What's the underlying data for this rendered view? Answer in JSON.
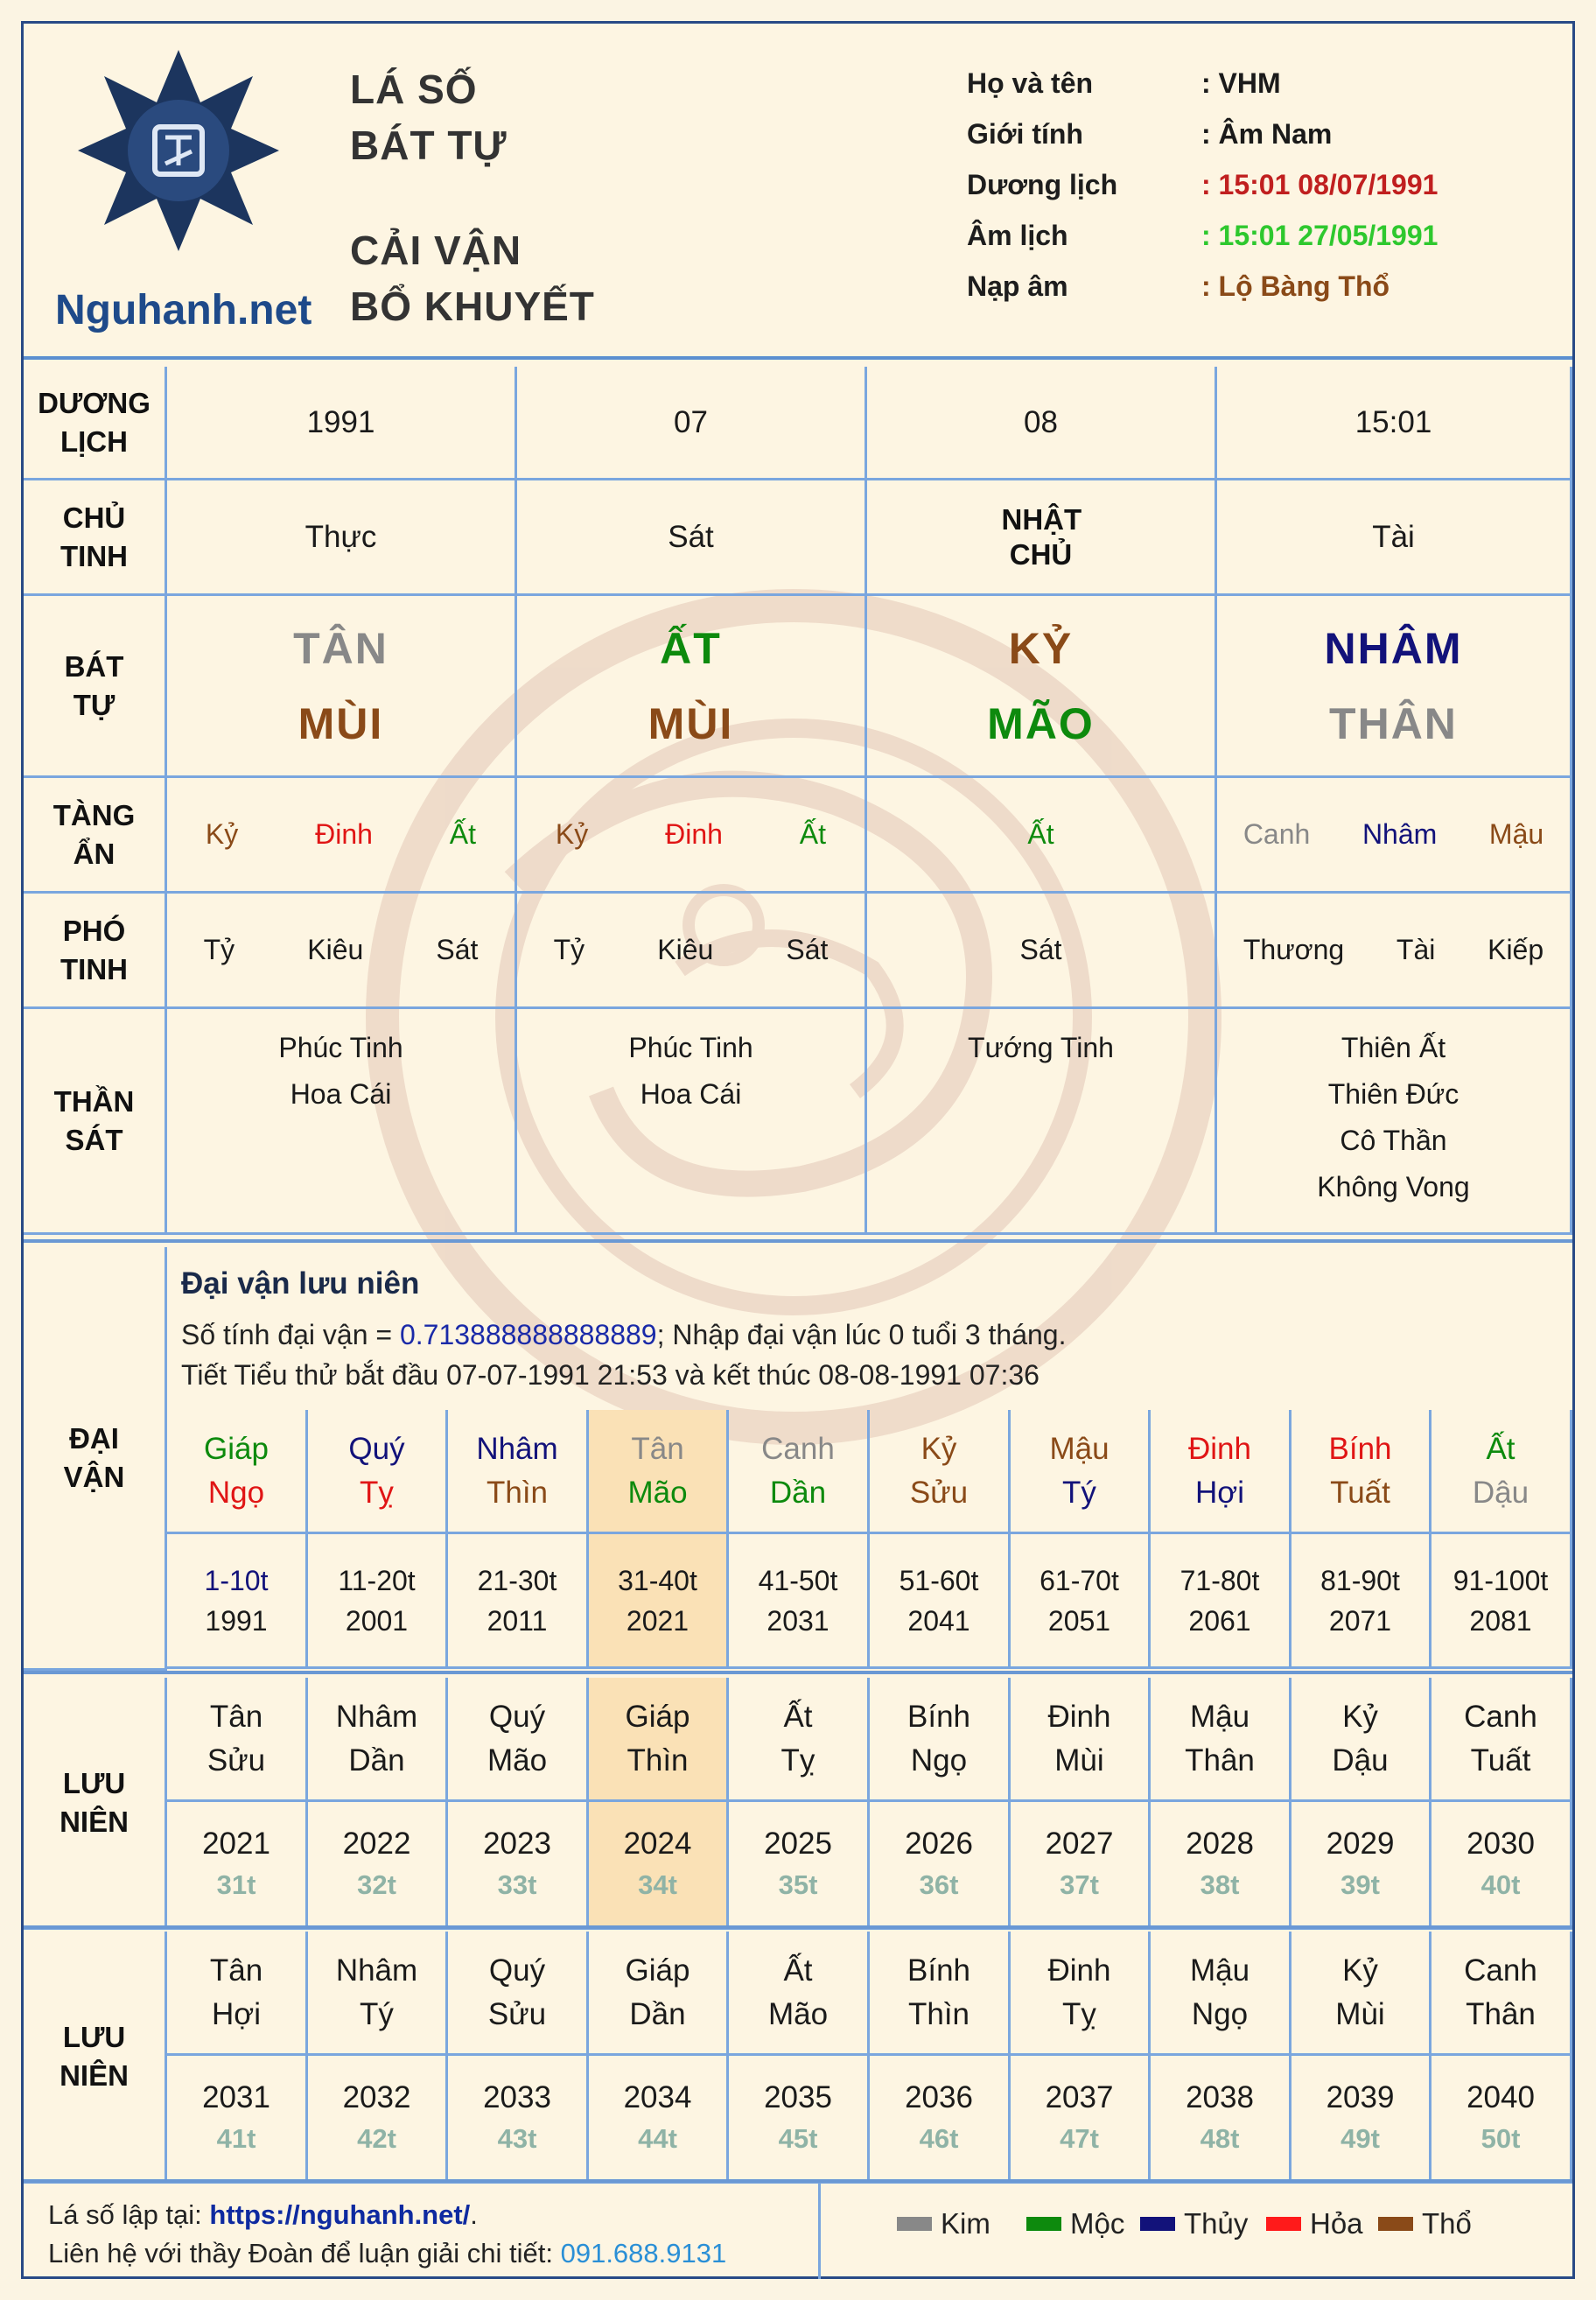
{
  "header": {
    "brand": "Nguhanh.net",
    "title_lines": [
      "LÁ SỐ",
      "BÁT TỰ",
      "CẢI VẬN",
      "BỔ KHUYẾT"
    ],
    "info": [
      {
        "label": "Họ và tên",
        "value": ": VHM",
        "color": "#1d1d1d"
      },
      {
        "label": "Giới tính",
        "value": ": Âm Nam",
        "color": "#1d1d1d"
      },
      {
        "label": "Dương lịch",
        "value": ": 15:01 08/07/1991",
        "color": "#c01f1f"
      },
      {
        "label": "Âm lịch",
        "value": ": 15:01 27/05/1991",
        "color": "#2ec82e"
      },
      {
        "label": "Nạp âm",
        "value": ": Lộ Bàng Thổ",
        "color": "#8a4a18"
      }
    ]
  },
  "labels": {
    "duong_lich": [
      "DƯƠNG",
      "LỊCH"
    ],
    "chu_tinh": [
      "CHỦ",
      "TINH"
    ],
    "bat_tu": [
      "BÁT",
      "TỰ"
    ],
    "tang_an": [
      "TÀNG",
      "ẨN"
    ],
    "pho_tinh": [
      "PHÓ",
      "TINH"
    ],
    "than_sat": [
      "THẦN",
      "SÁT"
    ],
    "dai_van": [
      "ĐẠI",
      "VẬN"
    ],
    "luu_nien": [
      "LƯU",
      "NIÊN"
    ]
  },
  "pillars": [
    {
      "duong": "1991",
      "chu": "Thực",
      "can": "TÂN",
      "can_color": "#888888",
      "chi": "MÙI",
      "chi_color": "#8a4a18",
      "tang": [
        {
          "t": "Kỷ",
          "c": "#8a4a18"
        },
        {
          "t": "Đinh",
          "c": "#e01515"
        },
        {
          "t": "Ất",
          "c": "#0d8a0d"
        }
      ],
      "pho": [
        "Tỷ",
        "Kiêu",
        "Sát"
      ],
      "than": [
        "Phúc Tinh",
        "Hoa Cái"
      ]
    },
    {
      "duong": "07",
      "chu": "Sát",
      "can": "ẤT",
      "can_color": "#0d8a0d",
      "chi": "MÙI",
      "chi_color": "#8a4a18",
      "tang": [
        {
          "t": "Kỷ",
          "c": "#8a4a18"
        },
        {
          "t": "Đinh",
          "c": "#e01515"
        },
        {
          "t": "Ất",
          "c": "#0d8a0d"
        }
      ],
      "pho": [
        "Tỷ",
        "Kiêu",
        "Sát"
      ],
      "than": [
        "Phúc Tinh",
        "Hoa Cái"
      ]
    },
    {
      "duong": "08",
      "chu": "NHẬT CHỦ",
      "can": "KỶ",
      "can_color": "#8a4a18",
      "chi": "MÃO",
      "chi_color": "#0d8a0d",
      "tang": [
        {
          "t": "Ất",
          "c": "#0d8a0d"
        }
      ],
      "pho": [
        "Sát"
      ],
      "than": [
        "Tướng Tinh"
      ]
    },
    {
      "duong": "15:01",
      "chu": "Tài",
      "can": "NHÂM",
      "can_color": "#12127a",
      "chi": "THÂN",
      "chi_color": "#888888",
      "tang": [
        {
          "t": "Canh",
          "c": "#888888"
        },
        {
          "t": "Nhâm",
          "c": "#12127a"
        },
        {
          "t": "Mậu",
          "c": "#8a4a18"
        }
      ],
      "pho": [
        "Thương",
        "Tài",
        "Kiếp"
      ],
      "than": [
        "Thiên Ất",
        "Thiên Đức",
        "Cô Thần",
        "Không Vong"
      ]
    }
  ],
  "dai_van": {
    "title": "Đại vận lưu niên",
    "line1_prefix": "Số tính đại vận = ",
    "line1_number": "0.713888888888889",
    "line1_suffix": "; Nhập đại vận lúc 0 tuổi 3 tháng.",
    "line2": "Tiết Tiểu thử bắt đầu 07-07-1991 21:53 và kết thúc 08-08-1991 07:36",
    "cycles": [
      {
        "can": "Giáp",
        "cc": "#0d8a0d",
        "chi": "Ngọ",
        "hc": "#e01515",
        "age": "1-10t",
        "ac": "#12127a",
        "year": "1991"
      },
      {
        "can": "Quý",
        "cc": "#12127a",
        "chi": "Tỵ",
        "hc": "#e01515",
        "age": "11-20t",
        "ac": "#1a1a1a",
        "year": "2001"
      },
      {
        "can": "Nhâm",
        "cc": "#12127a",
        "chi": "Thìn",
        "hc": "#8a4a18",
        "age": "21-30t",
        "ac": "#1a1a1a",
        "year": "2011"
      },
      {
        "can": "Tân",
        "cc": "#888888",
        "chi": "Mão",
        "hc": "#0d8a0d",
        "age": "31-40t",
        "ac": "#1a1a1a",
        "year": "2021",
        "hl": true
      },
      {
        "can": "Canh",
        "cc": "#888888",
        "chi": "Dần",
        "hc": "#0d8a0d",
        "age": "41-50t",
        "ac": "#1a1a1a",
        "year": "2031"
      },
      {
        "can": "Kỷ",
        "cc": "#8a4a18",
        "chi": "Sửu",
        "hc": "#8a4a18",
        "age": "51-60t",
        "ac": "#1a1a1a",
        "year": "2041"
      },
      {
        "can": "Mậu",
        "cc": "#8a4a18",
        "chi": "Tý",
        "hc": "#12127a",
        "age": "61-70t",
        "ac": "#1a1a1a",
        "year": "2051"
      },
      {
        "can": "Đinh",
        "cc": "#e01515",
        "chi": "Hợi",
        "hc": "#12127a",
        "age": "71-80t",
        "ac": "#1a1a1a",
        "year": "2061"
      },
      {
        "can": "Bính",
        "cc": "#e01515",
        "chi": "Tuất",
        "hc": "#8a4a18",
        "age": "81-90t",
        "ac": "#1a1a1a",
        "year": "2071"
      },
      {
        "can": "Ất",
        "cc": "#0d8a0d",
        "chi": "Dậu",
        "hc": "#888888",
        "age": "91-100t",
        "ac": "#1a1a1a",
        "year": "2081"
      }
    ]
  },
  "luu_nien_1": [
    {
      "can": "Tân",
      "chi": "Sửu",
      "year": "2021",
      "age": "31t"
    },
    {
      "can": "Nhâm",
      "chi": "Dần",
      "year": "2022",
      "age": "32t"
    },
    {
      "can": "Quý",
      "chi": "Mão",
      "year": "2023",
      "age": "33t"
    },
    {
      "can": "Giáp",
      "chi": "Thìn",
      "year": "2024",
      "age": "34t",
      "hl": true
    },
    {
      "can": "Ất",
      "chi": "Tỵ",
      "year": "2025",
      "age": "35t"
    },
    {
      "can": "Bính",
      "chi": "Ngọ",
      "year": "2026",
      "age": "36t"
    },
    {
      "can": "Đinh",
      "chi": "Mùi",
      "year": "2027",
      "age": "37t"
    },
    {
      "can": "Mậu",
      "chi": "Thân",
      "year": "2028",
      "age": "38t"
    },
    {
      "can": "Kỷ",
      "chi": "Dậu",
      "year": "2029",
      "age": "39t"
    },
    {
      "can": "Canh",
      "chi": "Tuất",
      "year": "2030",
      "age": "40t"
    }
  ],
  "luu_nien_2": [
    {
      "can": "Tân",
      "chi": "Hợi",
      "year": "2031",
      "age": "41t"
    },
    {
      "can": "Nhâm",
      "chi": "Tý",
      "year": "2032",
      "age": "42t"
    },
    {
      "can": "Quý",
      "chi": "Sửu",
      "year": "2033",
      "age": "43t"
    },
    {
      "can": "Giáp",
      "chi": "Dần",
      "year": "2034",
      "age": "44t"
    },
    {
      "can": "Ất",
      "chi": "Mão",
      "year": "2035",
      "age": "45t"
    },
    {
      "can": "Bính",
      "chi": "Thìn",
      "year": "2036",
      "age": "46t"
    },
    {
      "can": "Đinh",
      "chi": "Tỵ",
      "year": "2037",
      "age": "47t"
    },
    {
      "can": "Mậu",
      "chi": "Ngọ",
      "year": "2038",
      "age": "48t"
    },
    {
      "can": "Kỷ",
      "chi": "Mùi",
      "year": "2039",
      "age": "49t"
    },
    {
      "can": "Canh",
      "chi": "Thân",
      "year": "2040",
      "age": "50t"
    }
  ],
  "footer": {
    "line1_prefix": "Lá số lập tại: ",
    "link": "https://nguhanh.net/",
    "line1_suffix": ".",
    "line2_prefix": "Liên hệ với thầy Đoàn để luận giải chi tiết: ",
    "phone": "091.688.9131"
  },
  "legend": [
    {
      "label": "Kim",
      "color": "#888888"
    },
    {
      "label": "Mộc",
      "color": "#0d8a0d"
    },
    {
      "label": "Thủy",
      "color": "#12127a"
    },
    {
      "label": "Hỏa",
      "color": "#ff1a1a"
    },
    {
      "label": "Thổ",
      "color": "#8a4a18"
    }
  ]
}
